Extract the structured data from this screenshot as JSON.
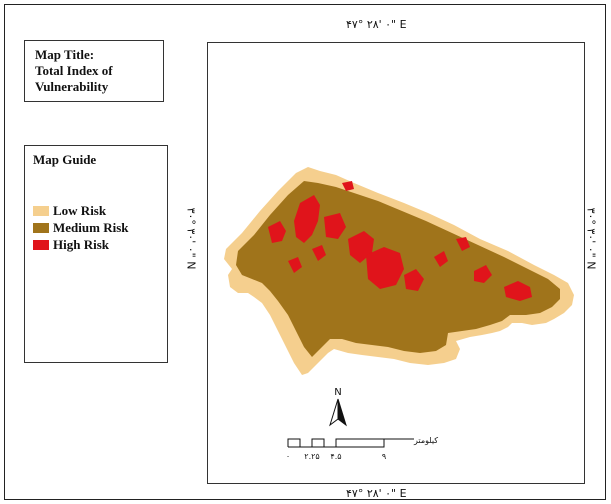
{
  "title_box": {
    "lines": [
      "Map Title:",
      "Total Index of",
      "Vulnerability"
    ]
  },
  "guide": {
    "heading": "Map Guide",
    "items": [
      {
        "label": "Low Risk",
        "color": "#f5cf8e"
      },
      {
        "label": "Medium Risk",
        "color": "#a0741b"
      },
      {
        "label": "High Risk",
        "color": "#e0141b"
      }
    ]
  },
  "coordinates": {
    "top": "۴۷° ۲۸' ۰\" E",
    "bottom": "۴۷° ۲۸' ۰\" E",
    "left": "۳۰° ۳۰' ۰\" N",
    "right": "۳۰° ۳۰' ۰\" N"
  },
  "north_arrow": {
    "label": "N"
  },
  "scale_bar": {
    "unit": "کیلومتر",
    "ticks": [
      "۰",
      "۲.۲۵",
      "۴.۵",
      "۹"
    ]
  }
}
